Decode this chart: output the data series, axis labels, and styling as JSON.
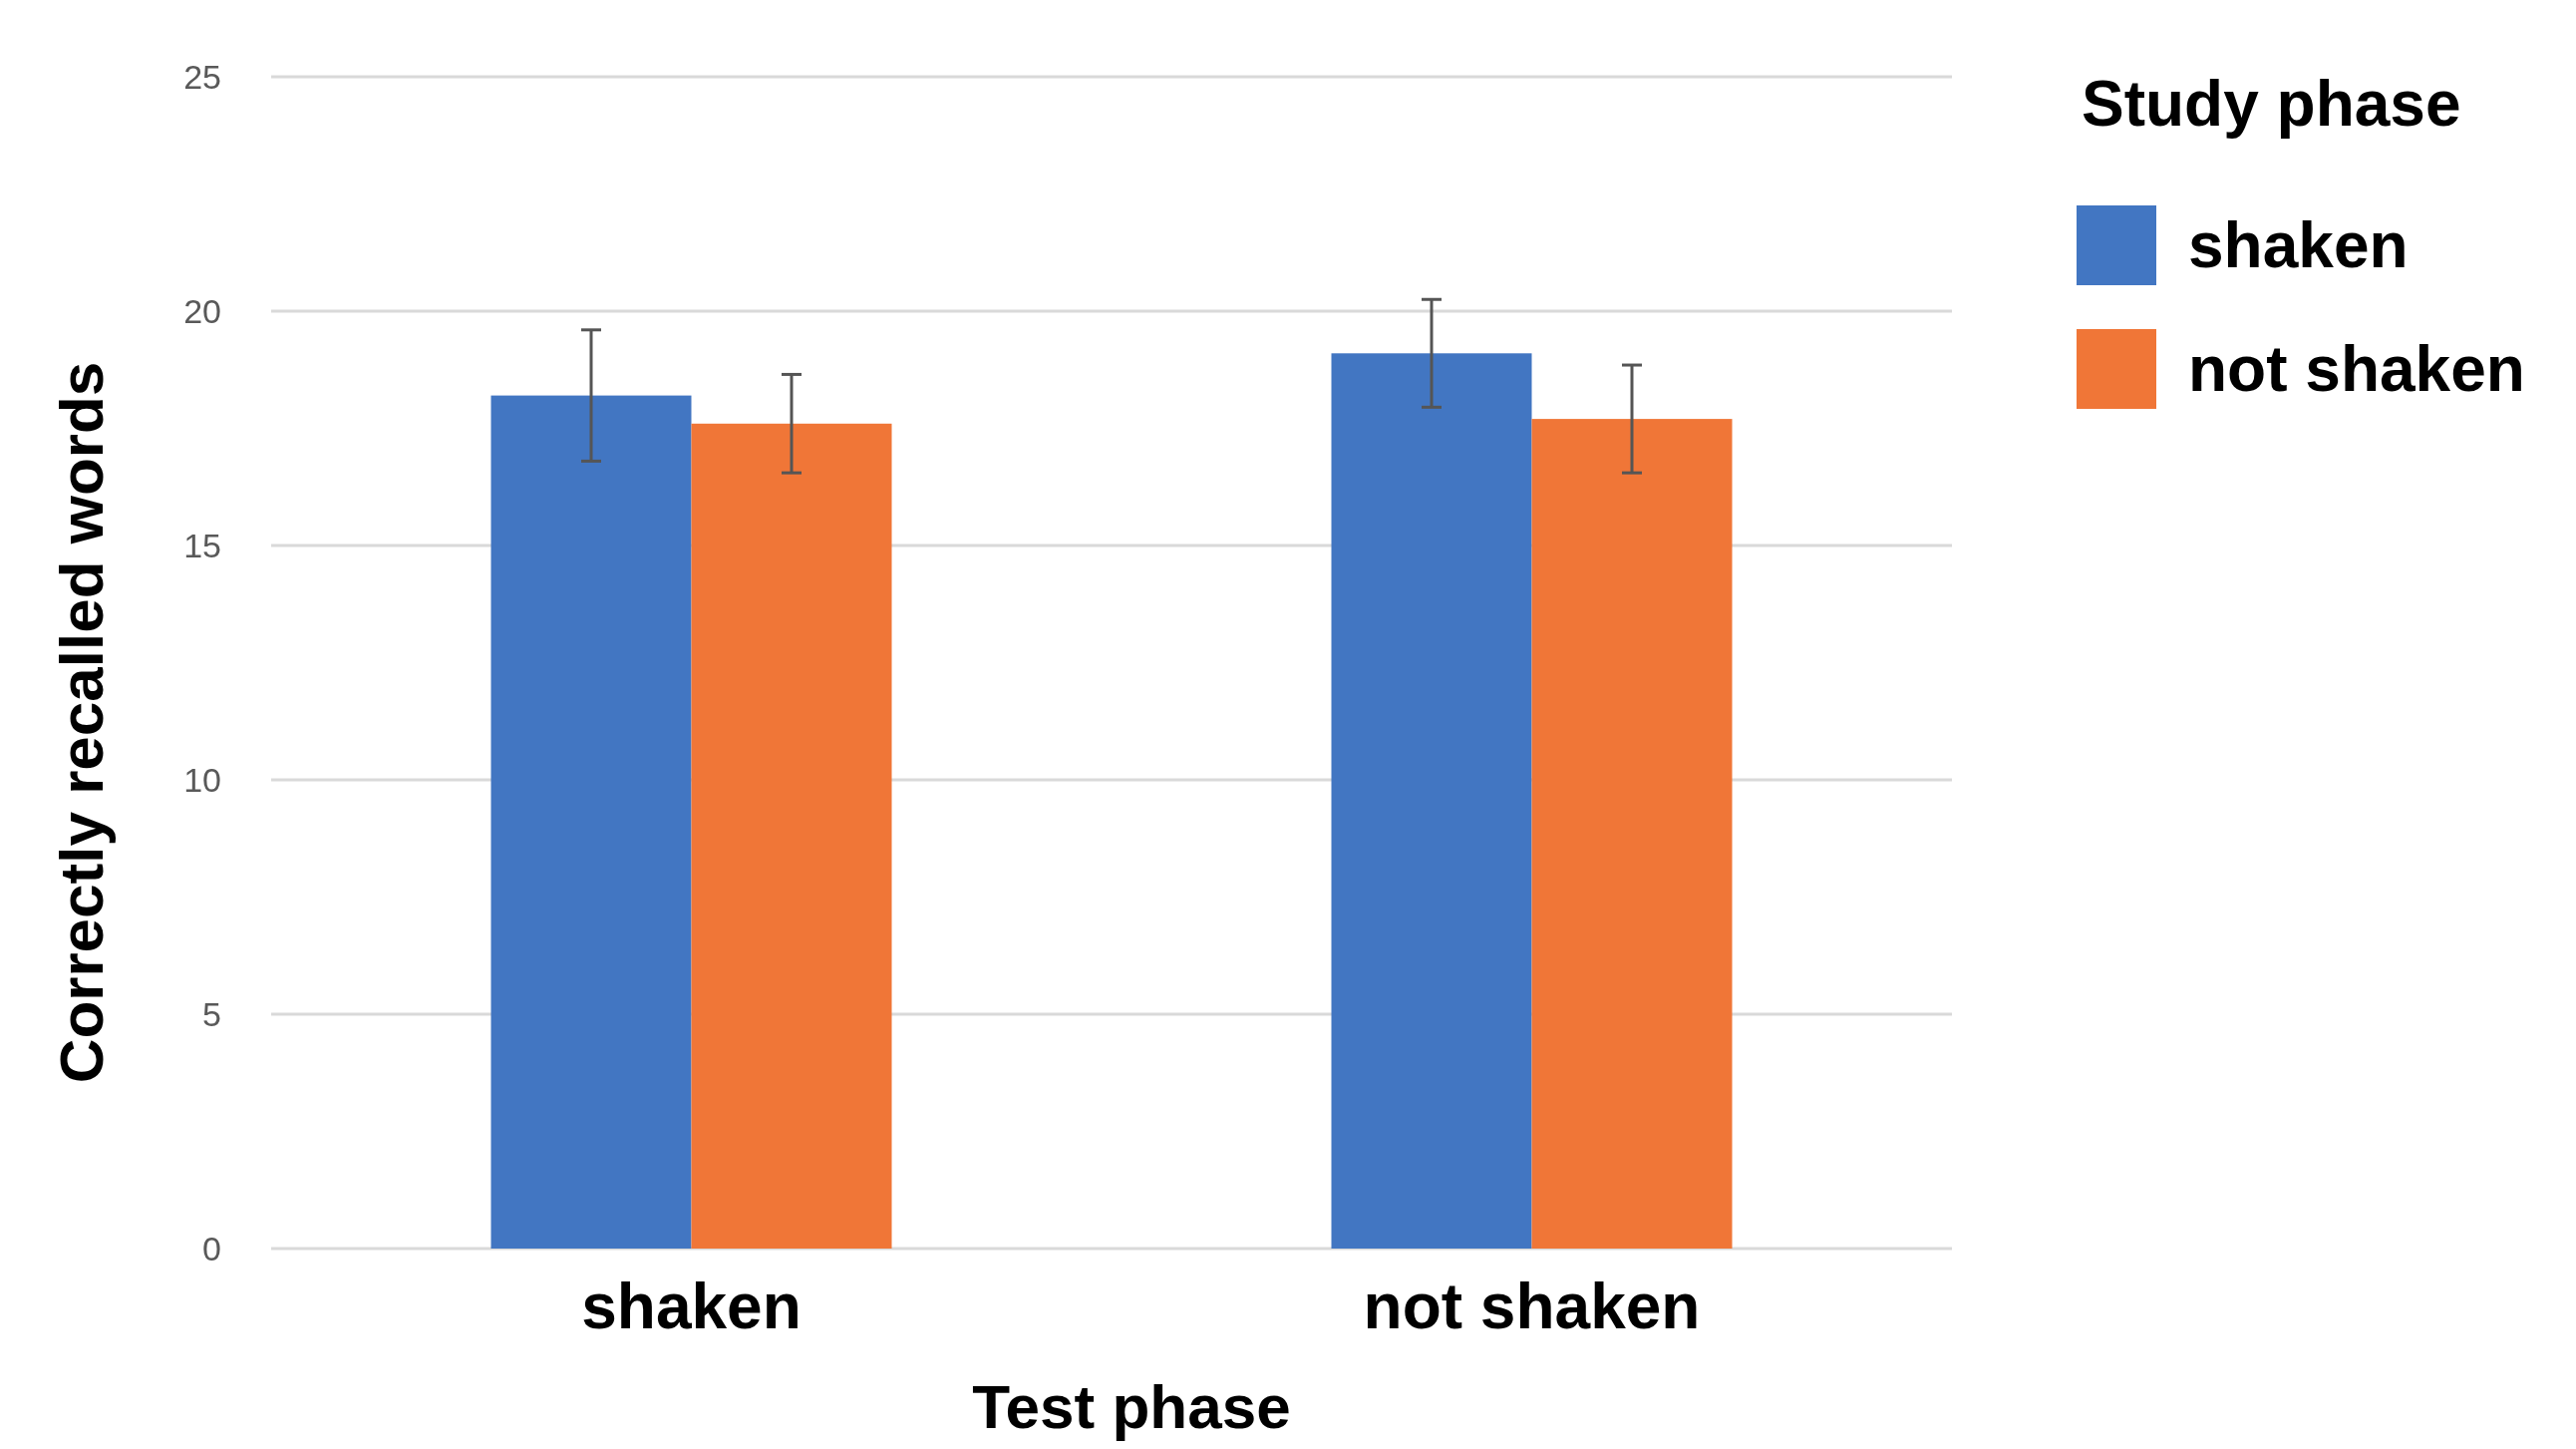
{
  "chart_data": {
    "type": "bar",
    "xlabel": "Test phase",
    "ylabel": "Correctly recalled words",
    "legend_title": "Study phase",
    "categories": [
      "shaken",
      "not shaken"
    ],
    "series": [
      {
        "name": "shaken",
        "color": "#4276c2",
        "values": [
          18.2,
          19.1
        ],
        "errors": [
          1.4,
          1.15
        ]
      },
      {
        "name": "not shaken",
        "color": "#f07637",
        "values": [
          17.6,
          17.7
        ],
        "errors": [
          1.05,
          1.15
        ]
      }
    ],
    "ylim": [
      0,
      25
    ],
    "yticks": [
      0,
      5,
      10,
      15,
      20,
      25
    ],
    "grid": "y",
    "legend": "top right"
  }
}
